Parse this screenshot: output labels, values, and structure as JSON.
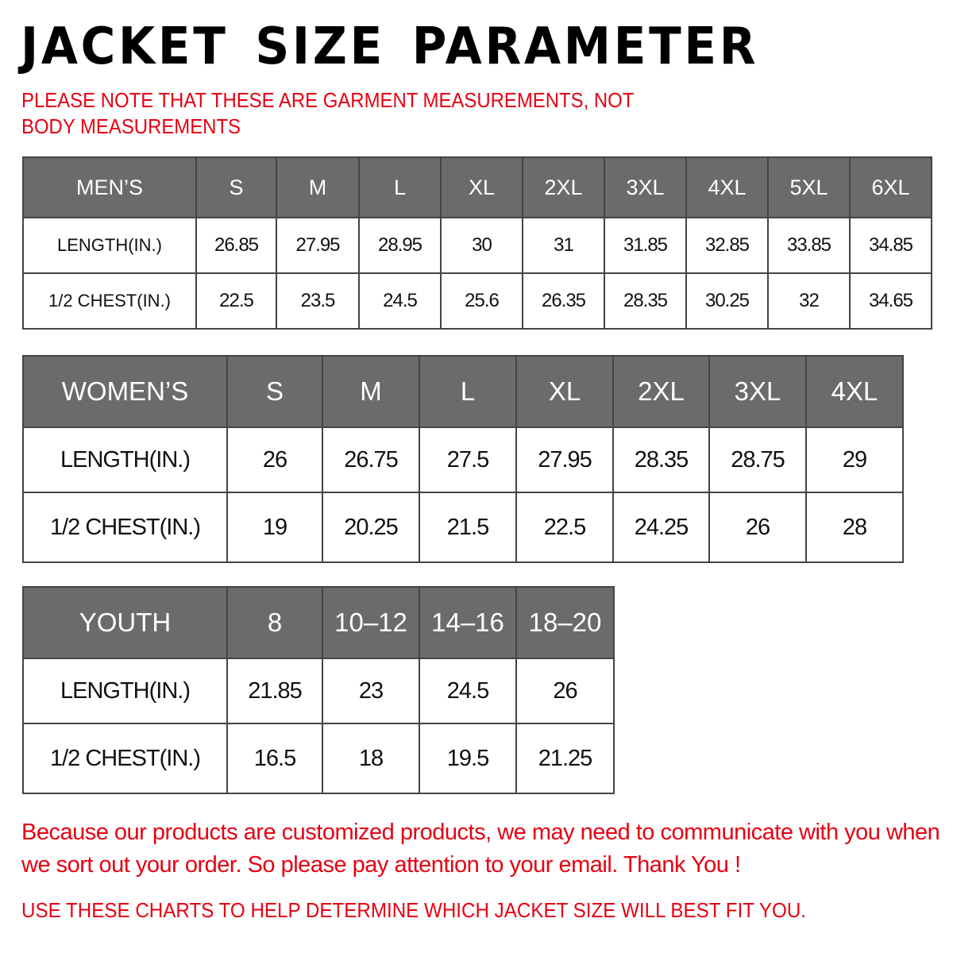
{
  "title": "JACKET SIZE PARAMETER",
  "note": "PLEASE NOTE THAT THESE ARE GARMENT MEASUREMENTS, NOT BODY MEASUREMENTS",
  "colors": {
    "header_bg": "#6b6b6b",
    "accent_red": "#e60012"
  },
  "tables": {
    "men": {
      "header": [
        "MEN’S",
        "S",
        "M",
        "L",
        "XL",
        "2XL",
        "3XL",
        "4XL",
        "5XL",
        "6XL"
      ],
      "rows": [
        [
          "LENGTH(IN.)",
          "26.85",
          "27.95",
          "28.95",
          "30",
          "31",
          "31.85",
          "32.85",
          "33.85",
          "34.85"
        ],
        [
          "1/2 CHEST(IN.)",
          "22.5",
          "23.5",
          "24.5",
          "25.6",
          "26.35",
          "28.35",
          "30.25",
          "32",
          "34.65"
        ]
      ]
    },
    "women": {
      "header": [
        "WOMEN’S",
        "S",
        "M",
        "L",
        "XL",
        "2XL",
        "3XL",
        "4XL"
      ],
      "rows": [
        [
          "LENGTH(IN.)",
          "26",
          "26.75",
          "27.5",
          "27.95",
          "28.35",
          "28.75",
          "29"
        ],
        [
          "1/2 CHEST(IN.)",
          "19",
          "20.25",
          "21.5",
          "22.5",
          "24.25",
          "26",
          "28"
        ]
      ]
    },
    "youth": {
      "header": [
        "YOUTH",
        "8",
        "10–12",
        "14–16",
        "18–20"
      ],
      "rows": [
        [
          "LENGTH(IN.)",
          "21.85",
          "23",
          "24.5",
          "26"
        ],
        [
          "1/2 CHEST(IN.)",
          "16.5",
          "18",
          "19.5",
          "21.25"
        ]
      ]
    }
  },
  "footer": {
    "message": "Because our products are customized products, we may need to communicate with you when we sort out your order. So please pay attention to your email. Thank You !",
    "advice": "USE THESE CHARTS TO HELP DETERMINE WHICH JACKET SIZE WILL BEST FIT YOU."
  }
}
